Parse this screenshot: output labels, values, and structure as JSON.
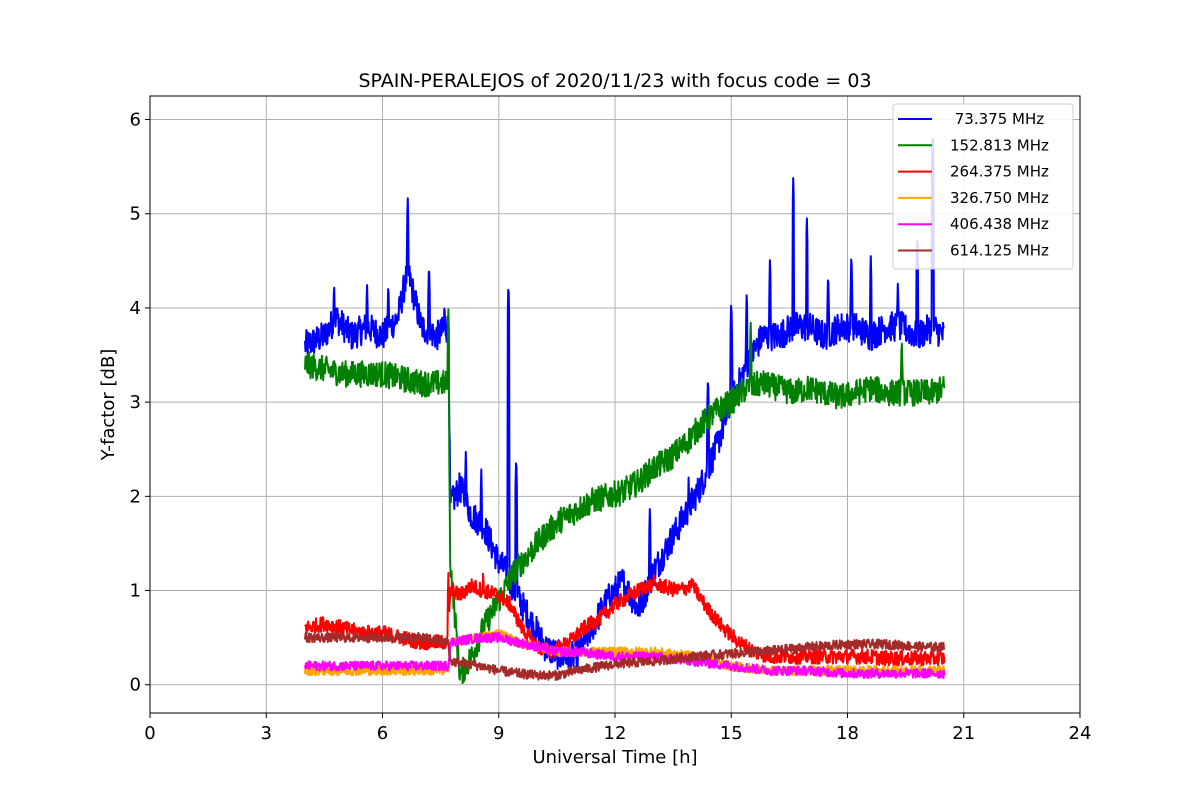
{
  "chart_data": {
    "type": "line",
    "title": "SPAIN-PERALEJOS of 2020/11/23 with focus code = 03",
    "xlabel": "Universal Time [h]",
    "ylabel": "Y-factor [dB]",
    "xlim": [
      0,
      24
    ],
    "ylim": [
      -0.3,
      6.25
    ],
    "xticks": [
      0,
      3,
      6,
      9,
      12,
      15,
      18,
      21,
      24
    ],
    "yticks": [
      0,
      1,
      2,
      3,
      4,
      5,
      6
    ],
    "grid": true,
    "legend_position": "top-right",
    "series": [
      {
        "name": " 73.375 MHz",
        "color": "#0000ff",
        "x": [
          4.0,
          4.5,
          4.8,
          5.2,
          5.6,
          6.0,
          6.4,
          6.65,
          7.0,
          7.4,
          7.7,
          7.75,
          8.0,
          8.3,
          8.6,
          9.0,
          9.2,
          9.4,
          9.8,
          10.2,
          10.6,
          11.0,
          11.4,
          11.8,
          12.2,
          12.6,
          13.0,
          13.4,
          13.8,
          14.2,
          14.6,
          15.0,
          15.4,
          15.8,
          16.2,
          16.6,
          17.0,
          17.4,
          17.8,
          18.2,
          18.6,
          19.0,
          19.4,
          19.8,
          20.2,
          20.5
        ],
        "y": [
          3.6,
          3.7,
          3.9,
          3.7,
          3.8,
          3.7,
          3.9,
          4.4,
          3.8,
          3.7,
          3.8,
          1.9,
          2.1,
          1.8,
          1.7,
          1.3,
          1.2,
          1.0,
          0.7,
          0.4,
          0.3,
          0.3,
          0.6,
          0.9,
          1.1,
          0.8,
          1.2,
          1.5,
          1.8,
          2.1,
          2.5,
          3.0,
          3.4,
          3.7,
          3.7,
          3.8,
          3.8,
          3.7,
          3.8,
          3.8,
          3.7,
          3.8,
          3.8,
          3.7,
          3.8,
          3.7
        ],
        "peaks": [
          [
            4.75,
            4.3
          ],
          [
            5.6,
            4.3
          ],
          [
            6.15,
            4.3
          ],
          [
            6.65,
            5.2
          ],
          [
            7.2,
            4.5
          ],
          [
            7.6,
            4.1
          ],
          [
            8.15,
            2.5
          ],
          [
            8.55,
            2.3
          ],
          [
            9.25,
            4.3
          ],
          [
            9.45,
            2.45
          ],
          [
            12.9,
            1.9
          ],
          [
            13.9,
            2.2
          ],
          [
            14.4,
            3.3
          ],
          [
            15.0,
            4.1
          ],
          [
            15.4,
            4.2
          ],
          [
            16.0,
            4.55
          ],
          [
            16.6,
            5.4
          ],
          [
            16.95,
            5.0
          ],
          [
            17.5,
            4.4
          ],
          [
            18.1,
            4.6
          ],
          [
            18.6,
            4.6
          ],
          [
            19.3,
            4.3
          ],
          [
            19.8,
            4.8
          ],
          [
            20.2,
            5.9
          ]
        ]
      },
      {
        "name": "152.813 MHz",
        "color": "#008000",
        "x": [
          4.0,
          4.5,
          5.0,
          5.5,
          6.0,
          6.5,
          7.0,
          7.5,
          7.7,
          7.75,
          8.0,
          8.3,
          8.6,
          9.0,
          9.4,
          9.8,
          10.2,
          10.6,
          11.0,
          11.4,
          11.8,
          12.2,
          12.6,
          13.0,
          13.4,
          13.8,
          14.2,
          14.6,
          15.0,
          15.4,
          15.8,
          16.2,
          16.6,
          17.0,
          17.4,
          17.8,
          18.2,
          18.6,
          19.0,
          19.4,
          19.8,
          20.2,
          20.5
        ],
        "y": [
          3.4,
          3.35,
          3.3,
          3.3,
          3.3,
          3.25,
          3.2,
          3.2,
          3.2,
          1.3,
          0.1,
          0.3,
          0.6,
          0.9,
          1.2,
          1.4,
          1.6,
          1.75,
          1.85,
          1.95,
          2.0,
          2.05,
          2.15,
          2.3,
          2.4,
          2.55,
          2.75,
          2.9,
          3.0,
          3.15,
          3.2,
          3.15,
          3.1,
          3.15,
          3.1,
          3.05,
          3.1,
          3.15,
          3.1,
          3.1,
          3.1,
          3.1,
          3.15
        ],
        "peaks": [
          [
            7.7,
            4.0
          ],
          [
            15.5,
            3.9
          ],
          [
            19.4,
            3.7
          ]
        ]
      },
      {
        "name": "264.375 MHz",
        "color": "#ff0000",
        "x": [
          4.0,
          4.5,
          5.0,
          5.5,
          6.0,
          6.5,
          7.0,
          7.5,
          7.7,
          7.75,
          8.0,
          8.3,
          8.6,
          9.0,
          9.3,
          9.6,
          10.0,
          10.4,
          10.8,
          11.2,
          11.6,
          12.0,
          12.4,
          12.8,
          13.2,
          13.6,
          14.0,
          14.4,
          14.8,
          15.2,
          15.6,
          16.0,
          16.5,
          17.0,
          17.5,
          18.0,
          18.5,
          19.0,
          19.5,
          20.0,
          20.5
        ],
        "y": [
          0.6,
          0.65,
          0.6,
          0.55,
          0.55,
          0.5,
          0.45,
          0.45,
          0.45,
          1.0,
          0.95,
          1.05,
          1.0,
          0.95,
          0.85,
          0.6,
          0.4,
          0.35,
          0.45,
          0.6,
          0.7,
          0.85,
          0.95,
          1.05,
          1.05,
          1.0,
          1.05,
          0.8,
          0.6,
          0.45,
          0.35,
          0.3,
          0.3,
          0.3,
          0.3,
          0.3,
          0.3,
          0.28,
          0.28,
          0.28,
          0.28
        ],
        "peaks": [
          [
            7.7,
            1.2
          ],
          [
            8.6,
            1.25
          ],
          [
            13.0,
            1.25
          ],
          [
            14.0,
            1.2
          ]
        ]
      },
      {
        "name": "326.750 MHz",
        "color": "#ffa500",
        "x": [
          4.0,
          5.0,
          6.0,
          7.0,
          7.7,
          7.75,
          8.5,
          9.0,
          9.5,
          10.0,
          10.5,
          11.0,
          12.0,
          13.0,
          14.0,
          15.0,
          16.0,
          17.0,
          18.0,
          19.0,
          20.0,
          20.5
        ],
        "y": [
          0.15,
          0.15,
          0.15,
          0.15,
          0.15,
          0.45,
          0.5,
          0.55,
          0.45,
          0.4,
          0.35,
          0.35,
          0.35,
          0.35,
          0.3,
          0.2,
          0.15,
          0.15,
          0.15,
          0.15,
          0.15,
          0.15
        ],
        "peaks": []
      },
      {
        "name": "406.438 MHz",
        "color": "#ff00ff",
        "x": [
          4.0,
          5.0,
          6.0,
          7.0,
          7.7,
          7.75,
          8.5,
          9.0,
          9.5,
          10.0,
          10.5,
          11.0,
          12.0,
          13.0,
          14.0,
          15.0,
          16.0,
          17.0,
          18.0,
          19.0,
          20.0,
          20.5
        ],
        "y": [
          0.2,
          0.2,
          0.2,
          0.2,
          0.2,
          0.45,
          0.5,
          0.5,
          0.45,
          0.4,
          0.35,
          0.35,
          0.3,
          0.3,
          0.25,
          0.2,
          0.15,
          0.15,
          0.12,
          0.12,
          0.12,
          0.12
        ],
        "peaks": []
      },
      {
        "name": "614.125 MHz",
        "color": "#a52a2a",
        "x": [
          4.0,
          5.0,
          6.0,
          7.0,
          7.7,
          7.75,
          8.5,
          9.0,
          9.5,
          10.0,
          10.5,
          11.0,
          12.0,
          13.0,
          14.0,
          15.0,
          16.0,
          17.0,
          18.0,
          19.0,
          20.0,
          20.5
        ],
        "y": [
          0.5,
          0.5,
          0.5,
          0.5,
          0.45,
          0.25,
          0.2,
          0.15,
          0.12,
          0.1,
          0.1,
          0.15,
          0.22,
          0.25,
          0.3,
          0.33,
          0.36,
          0.4,
          0.43,
          0.43,
          0.4,
          0.4
        ],
        "peaks": []
      }
    ]
  }
}
